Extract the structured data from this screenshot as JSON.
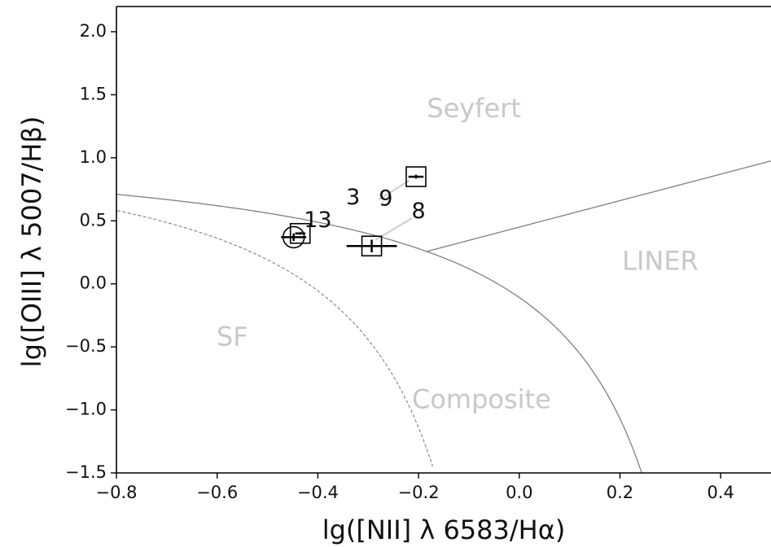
{
  "chart_data": {
    "type": "scatter",
    "title": "",
    "xlabel": "lg([NII] λ 6583/Hα)",
    "ylabel": "lg([OIII] λ 5007/Hβ)",
    "xlim": [
      -0.8,
      0.5
    ],
    "ylim": [
      -1.5,
      2.2
    ],
    "xticks": [
      -0.8,
      -0.6,
      -0.4,
      -0.2,
      0.0,
      0.2,
      0.4
    ],
    "xtick_labels": [
      "−0.8",
      "−0.6",
      "−0.4",
      "−0.2",
      "0.0",
      "0.2",
      "0.4"
    ],
    "yticks": [
      -1.5,
      -1.0,
      -0.5,
      0.0,
      0.5,
      1.0,
      1.5,
      2.0
    ],
    "ytick_labels": [
      "−1.5",
      "−1.0",
      "−0.5",
      "0.0",
      "0.5",
      "1.0",
      "1.5",
      "2.0"
    ],
    "grid": false,
    "regions": [
      {
        "label": "Seyfert",
        "x": -0.09,
        "y": 1.38
      },
      {
        "label": "LINER",
        "x": 0.28,
        "y": 0.17
      },
      {
        "label": "SF",
        "x": -0.57,
        "y": -0.43
      },
      {
        "label": "Composite",
        "x": -0.075,
        "y": -0.93
      }
    ],
    "boundaries": [
      {
        "name": "Kewley 2001 maximum starburst",
        "style": "solid",
        "color": "#808080"
      },
      {
        "name": "Kauffmann 2003 star-forming",
        "style": "dashed",
        "color": "#808080"
      },
      {
        "name": "Seyfert/LINER",
        "style": "solid",
        "color": "#808080"
      }
    ],
    "points": [
      {
        "x": -0.448,
        "y": 0.37,
        "marker": "circle",
        "xerr": 0.025,
        "yerr": 0.03
      },
      {
        "x": -0.435,
        "y": 0.4,
        "marker": "square",
        "xerr": 0.01,
        "yerr": 0.01
      },
      {
        "x": -0.293,
        "y": 0.3,
        "marker": "square",
        "xerr": 0.05,
        "yerr": 0.05
      },
      {
        "x": -0.205,
        "y": 0.85,
        "marker": "square",
        "xerr": 0.015,
        "yerr": 0.015
      }
    ],
    "annotations": [
      {
        "text": "13",
        "x": -0.4,
        "y": 0.5
      },
      {
        "text": "3",
        "x": -0.33,
        "y": 0.68
      },
      {
        "text": "9",
        "x": -0.265,
        "y": 0.67
      },
      {
        "text": "8",
        "x": -0.2,
        "y": 0.57
      }
    ],
    "leader_lines": [
      {
        "from": [
          -0.279,
          0.67
        ],
        "to": [
          -0.218,
          0.82
        ]
      },
      {
        "from": [
          -0.285,
          0.35
        ],
        "to": [
          -0.213,
          0.52
        ]
      }
    ]
  }
}
